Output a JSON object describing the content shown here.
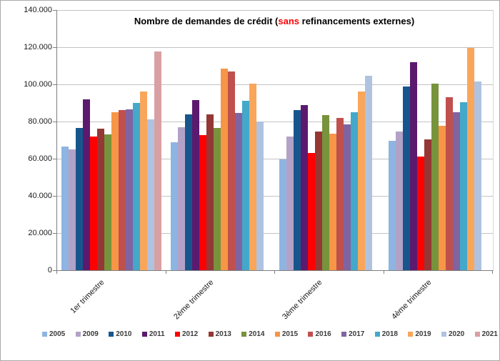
{
  "chart_data": {
    "type": "bar",
    "title": {
      "prefix": "Nombre de demandes de crédit (",
      "highlight": "sans",
      "suffix": " refinancements externes)",
      "highlight_color": "#ff0000"
    },
    "categories": [
      "1er trimestre",
      "2ème trimestre",
      "3ème trimestre",
      "4ème trimestre"
    ],
    "yticks": [
      "140.000",
      "120.000",
      "100.000",
      "80.000",
      "60.000",
      "40.000",
      "20.000",
      "0"
    ],
    "ylim": [
      0,
      140000
    ],
    "ytick_step": 20000,
    "grid": true,
    "legend_position": "bottom",
    "series": [
      {
        "name": "2005",
        "color": "#8eb4e2",
        "values": [
          66500,
          69000,
          59500,
          69500
        ]
      },
      {
        "name": "2009",
        "color": "#b3a2c7",
        "values": [
          65000,
          77000,
          72000,
          74500
        ]
      },
      {
        "name": "2010",
        "color": "#17568c",
        "values": [
          76500,
          84000,
          86000,
          99000
        ]
      },
      {
        "name": "2011",
        "color": "#5b1a6e",
        "values": [
          92000,
          91500,
          89000,
          112000
        ]
      },
      {
        "name": "2012",
        "color": "#ff0000",
        "values": [
          72000,
          72500,
          63000,
          61000
        ]
      },
      {
        "name": "2013",
        "color": "#943735",
        "values": [
          76000,
          84000,
          74500,
          70500
        ]
      },
      {
        "name": "2014",
        "color": "#77933c",
        "values": [
          73000,
          76500,
          83500,
          100500
        ]
      },
      {
        "name": "2015",
        "color": "#f79646",
        "values": [
          85000,
          108500,
          73500,
          77500
        ]
      },
      {
        "name": "2016",
        "color": "#c0504d",
        "values": [
          86000,
          107000,
          82000,
          93000
        ]
      },
      {
        "name": "2017",
        "color": "#8064a2",
        "values": [
          86500,
          84500,
          78500,
          85000
        ]
      },
      {
        "name": "2018",
        "color": "#44a8cb",
        "values": [
          90000,
          91000,
          85000,
          90500
        ]
      },
      {
        "name": "2019",
        "color": "#f9a65a",
        "values": [
          96000,
          100500,
          96000,
          119500
        ]
      },
      {
        "name": "2020",
        "color": "#afc3e1",
        "values": [
          81000,
          80000,
          104500,
          101500
        ]
      },
      {
        "name": "2021",
        "color": "#d9a0a3",
        "values": [
          117500,
          null,
          null,
          null
        ]
      }
    ]
  }
}
